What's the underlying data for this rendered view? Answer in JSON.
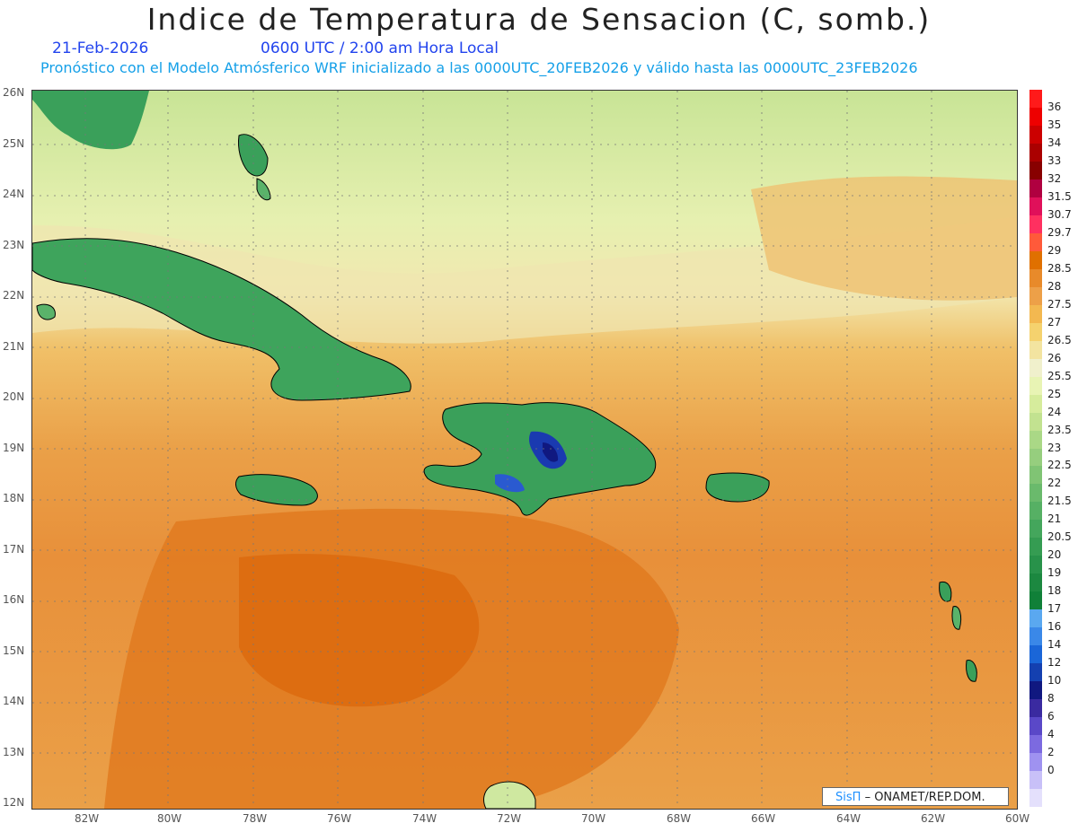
{
  "header": {
    "title": "Indice de Temperatura de Sensacion (C, somb.)",
    "date": "21-Feb-2026",
    "time": "0600 UTC / 2:00 am Hora Local",
    "forecast": "Pronóstico con el Modelo Atmósferico WRF inicializado a las 0000UTC_20FEB2026 y válido hasta las  0000UTC_23FEB2026"
  },
  "map": {
    "region": "Caribbean",
    "lat_ticks": [
      "26N",
      "25N",
      "24N",
      "23N",
      "22N",
      "21N",
      "20N",
      "19N",
      "18N",
      "17N",
      "16N",
      "15N",
      "14N",
      "13N",
      "12N"
    ],
    "lon_ticks": [
      "82W",
      "80W",
      "78W",
      "76W",
      "74W",
      "72W",
      "70W",
      "68W",
      "66W",
      "64W",
      "62W",
      "60W"
    ]
  },
  "legend": {
    "levels": [
      {
        "label": "36",
        "color": "#ff1a1a"
      },
      {
        "label": "35",
        "color": "#ee0000"
      },
      {
        "label": "34",
        "color": "#cc0000"
      },
      {
        "label": "33",
        "color": "#aa0000"
      },
      {
        "label": "32",
        "color": "#880000"
      },
      {
        "label": "31.5",
        "color": "#b00040"
      },
      {
        "label": "30.7",
        "color": "#e0105a"
      },
      {
        "label": "29.7",
        "color": "#ff3060"
      },
      {
        "label": "29",
        "color": "#ff5a3a"
      },
      {
        "label": "28.5",
        "color": "#e07000"
      },
      {
        "label": "28",
        "color": "#e88a2a"
      },
      {
        "label": "27.5",
        "color": "#eda048"
      },
      {
        "label": "27",
        "color": "#f3b850"
      },
      {
        "label": "26.5",
        "color": "#f5d26e"
      },
      {
        "label": "26",
        "color": "#f3e4a0"
      },
      {
        "label": "25.5",
        "color": "#f0f0cc"
      },
      {
        "label": "25",
        "color": "#e8f4b4"
      },
      {
        "label": "24",
        "color": "#d6ec9c"
      },
      {
        "label": "23.5",
        "color": "#c2e290"
      },
      {
        "label": "23",
        "color": "#aad886"
      },
      {
        "label": "22.5",
        "color": "#96ce7e"
      },
      {
        "label": "22",
        "color": "#80c474"
      },
      {
        "label": "21.5",
        "color": "#6aba6c"
      },
      {
        "label": "21",
        "color": "#56b064"
      },
      {
        "label": "20.5",
        "color": "#44a65c"
      },
      {
        "label": "20",
        "color": "#359c52"
      },
      {
        "label": "19",
        "color": "#28924a"
      },
      {
        "label": "18",
        "color": "#1c8840"
      },
      {
        "label": "17",
        "color": "#108038"
      },
      {
        "label": "16",
        "color": "#5aa8f0"
      },
      {
        "label": "14",
        "color": "#3a88e8"
      },
      {
        "label": "12",
        "color": "#1a66d8"
      },
      {
        "label": "10",
        "color": "#1440b0"
      },
      {
        "label": "8",
        "color": "#101880"
      },
      {
        "label": "6",
        "color": "#3a2aa0"
      },
      {
        "label": "4",
        "color": "#5a48c8"
      },
      {
        "label": "2",
        "color": "#7c6ae0"
      },
      {
        "label": "0",
        "color": "#9f92f0"
      },
      {
        "label": "",
        "color": "#c8c0f8"
      },
      {
        "label": "",
        "color": "#e4e0fc"
      }
    ]
  },
  "credit": {
    "brand": "SisΠ",
    "text": "– ONAMET/REP.DOM."
  }
}
